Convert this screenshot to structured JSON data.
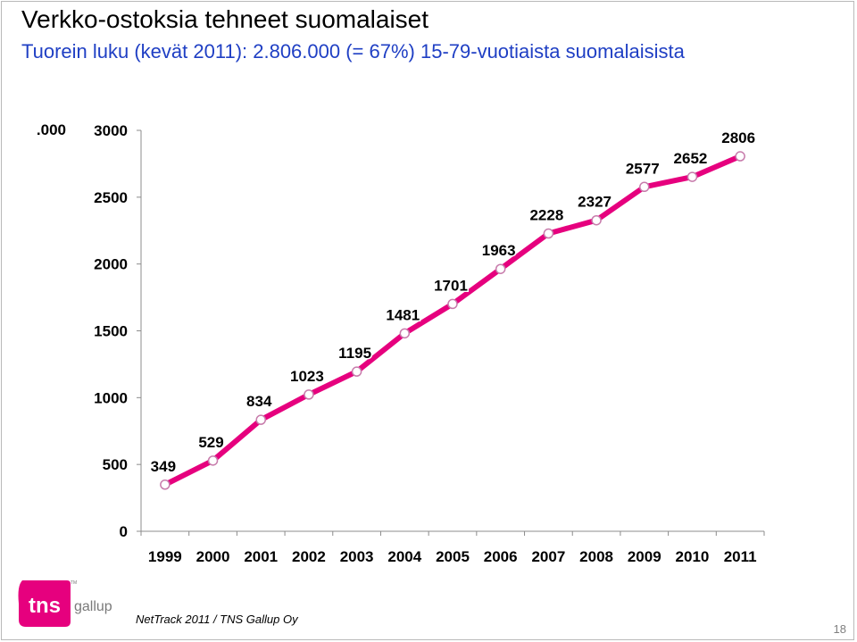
{
  "slide": {
    "title": "Verkko-ostoksia tehneet suomalaiset",
    "subtitle": "Tuorein luku (kevät 2011): 2.806.000 (= 67%) 15-79-vuotiaista suomalaisista",
    "source": "NetTrack 2011 / TNS Gallup Oy",
    "page_number": "18",
    "logo": {
      "main": "tns",
      "sub": "gallup",
      "tm": "TM",
      "color": "#e6007e"
    }
  },
  "chart_data": {
    "type": "line",
    "unit_label": ".000",
    "categories": [
      "1999",
      "2000",
      "2001",
      "2002",
      "2003",
      "2004",
      "2005",
      "2006",
      "2007",
      "2008",
      "2009",
      "2010",
      "2011"
    ],
    "series": [
      {
        "values": [
          349,
          529,
          834,
          1023,
          1195,
          1481,
          1701,
          1963,
          2228,
          2327,
          2577,
          2652,
          2806
        ],
        "color": "#e6007e"
      }
    ],
    "ylim": [
      0,
      3000
    ],
    "yticks": [
      0,
      500,
      1000,
      1500,
      2000,
      2500,
      3000
    ],
    "grid": false,
    "data_labels": true
  }
}
